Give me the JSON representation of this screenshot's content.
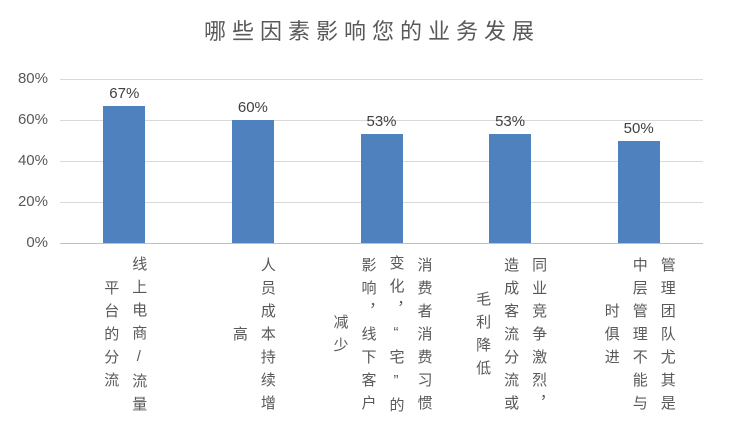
{
  "chart_data": {
    "type": "bar",
    "title": "哪些因素影响您的业务发展",
    "categories": [
      "线上电商/流量平台的分流",
      "人员成本持续增高",
      "消费者消费习惯变化，“宅”的影响，线下客户减少",
      "同业竞争激烈，造成客流分流或毛利降低",
      "管理团队尤其是中层管理不能与时俱进"
    ],
    "values": [
      67,
      60,
      53,
      53,
      50
    ],
    "data_labels": [
      "67%",
      "60%",
      "53%",
      "53%",
      "50%"
    ],
    "xlabel": "",
    "ylabel": "",
    "ylim": [
      0,
      80
    ],
    "yticks": [
      {
        "label": "80%",
        "value": 80
      },
      {
        "label": "60%",
        "value": 60
      },
      {
        "label": "40%",
        "value": 40
      },
      {
        "label": "20%",
        "value": 20
      },
      {
        "label": "0%",
        "value": 0
      }
    ],
    "grid": true,
    "legend": false
  },
  "colors": {
    "bar": "#4E81BD",
    "gridline": "#D9D9D9",
    "axis_line": "#BFBFBF",
    "axis_text": "#595959",
    "data_label_text": "#404040",
    "title_text": "#595959",
    "background": "#FFFFFF"
  }
}
